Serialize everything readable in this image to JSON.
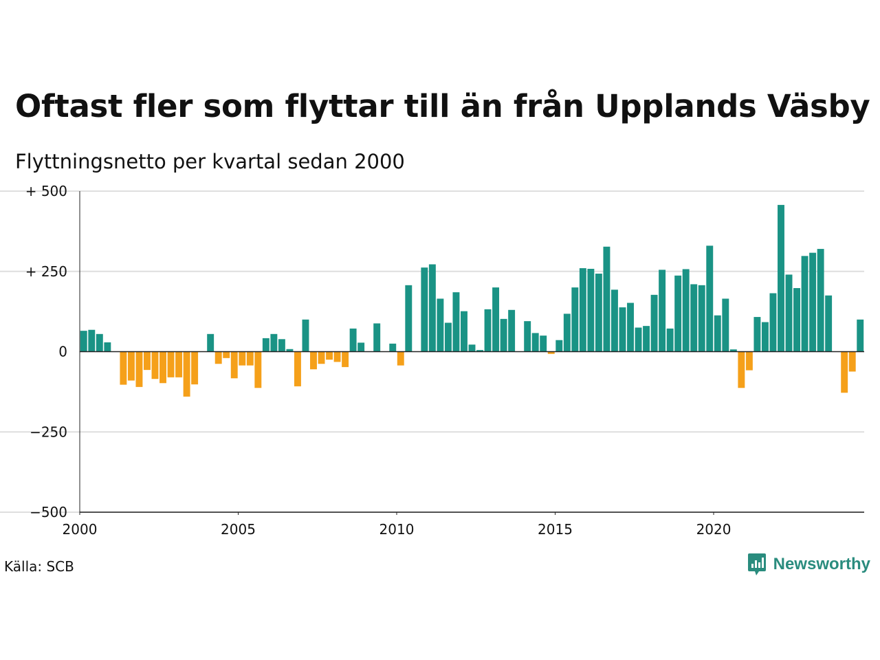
{
  "title": "Oftast fler som flyttar till än från Upplands Väsby",
  "subtitle": "Flyttningsnetto per kvartal sedan 2000",
  "source": "Källa: SCB",
  "brand": "Newsworthy",
  "colors": {
    "positive": "#1a9385",
    "negative": "#f5a01a",
    "grid": "#dedede",
    "axis": "#222222",
    "brand": "#2a8c7e"
  },
  "chart_data": {
    "type": "bar",
    "xlabel": "",
    "ylabel": "",
    "ylim": [
      -500,
      500
    ],
    "xlim": [
      2000,
      2024.75
    ],
    "y_ticks": [
      {
        "value": 500,
        "label": "+ 500"
      },
      {
        "value": 250,
        "label": "+ 250"
      },
      {
        "value": 0,
        "label": "0"
      },
      {
        "value": -250,
        "label": "−250"
      },
      {
        "value": -500,
        "label": "−500"
      }
    ],
    "x_ticks": [
      {
        "value": 2000,
        "label": "2000"
      },
      {
        "value": 2005,
        "label": "2005"
      },
      {
        "value": 2010,
        "label": "2010"
      },
      {
        "value": 2015,
        "label": "2015"
      },
      {
        "value": 2020,
        "label": "2020"
      }
    ],
    "grid": true,
    "legend": "none",
    "start_year": 2000,
    "periods_per_year": 4,
    "values": [
      65,
      68,
      55,
      29,
      0,
      -103,
      -90,
      -110,
      -57,
      -85,
      -98,
      -80,
      -80,
      -140,
      -102,
      0,
      55,
      -38,
      -20,
      -83,
      -43,
      -43,
      -113,
      42,
      55,
      39,
      8,
      -108,
      100,
      -55,
      -38,
      -25,
      -32,
      -48,
      72,
      28,
      0,
      88,
      0,
      25,
      -43,
      207,
      0,
      262,
      272,
      165,
      90,
      185,
      126,
      22,
      5,
      132,
      200,
      102,
      130,
      0,
      95,
      58,
      50,
      -7,
      36,
      118,
      200,
      260,
      258,
      243,
      327,
      193,
      138,
      152,
      75,
      80,
      177,
      255,
      72,
      237,
      257,
      210,
      207,
      330,
      113,
      165,
      7,
      -113,
      -58,
      108,
      92,
      182,
      457,
      240,
      198,
      298,
      308,
      320,
      175,
      0,
      -128,
      -62,
      100
    ]
  }
}
